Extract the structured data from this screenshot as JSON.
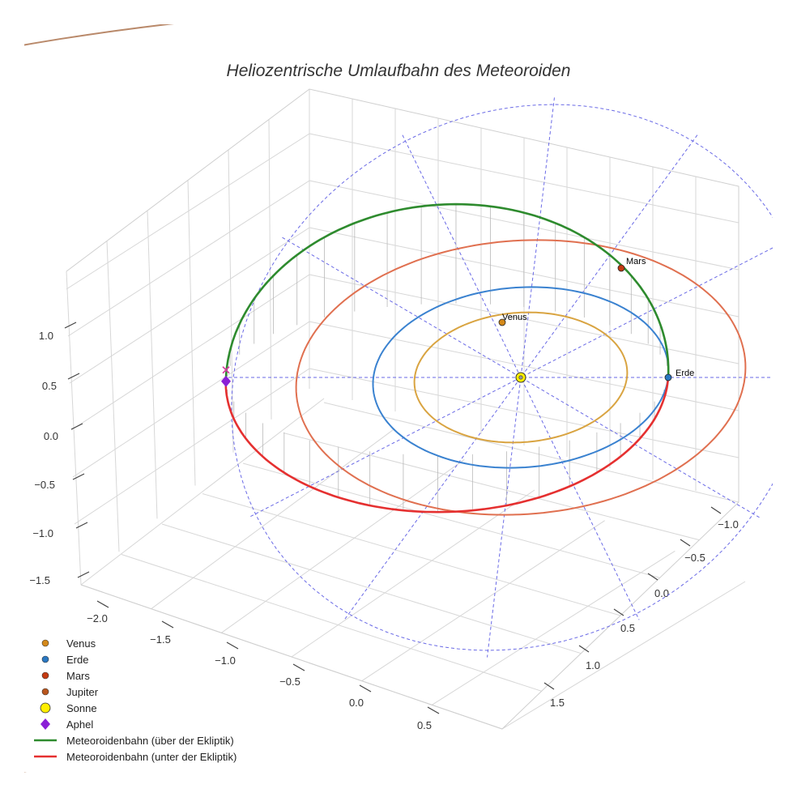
{
  "chart_data": {
    "type": "3d-line",
    "title": "Heliozentrische Umlaufbahn des Meteoroiden",
    "x_axis": {
      "ticks": [
        "−2.0",
        "−1.5",
        "−1.0",
        "−0.5",
        "0.0",
        "0.5"
      ],
      "range": [
        -2.3,
        0.8
      ]
    },
    "y_axis": {
      "ticks": [
        "−1.0",
        "−0.5",
        "0.0",
        "0.5",
        "1.0",
        "1.5"
      ],
      "range": [
        -1.3,
        1.8
      ]
    },
    "z_axis": {
      "ticks": [
        "−1.5",
        "−1.0",
        "−0.5",
        "0.0",
        "0.5",
        "1.0"
      ],
      "range": [
        -1.7,
        1.4
      ]
    },
    "orbits": [
      {
        "name": "Venus",
        "radius_au": 0.72,
        "color": "#d9a441"
      },
      {
        "name": "Erde",
        "radius_au": 1.0,
        "color": "#3a82d0"
      },
      {
        "name": "Mars",
        "radius_au": 1.52,
        "color": "#e07050"
      },
      {
        "name": "Jupiter",
        "radius_au": 5.2,
        "color": "#b9896a"
      }
    ],
    "planets": [
      {
        "name": "Venus",
        "label": "Venus",
        "color": "#d4891a",
        "x": 0.0,
        "y": 0.72,
        "z": 0.0
      },
      {
        "name": "Erde",
        "label": "Erde",
        "color": "#2a78c2",
        "x": 1.0,
        "y": 0.0,
        "z": 0.0
      },
      {
        "name": "Mars",
        "label": "Mars",
        "color": "#c43a12",
        "x": 0.9,
        "y": 1.22,
        "z": 0.0
      }
    ],
    "sun": {
      "name": "Sonne",
      "color": "#ffee00",
      "x": 0,
      "y": 0,
      "z": 0
    },
    "meteoroid": {
      "semi_major_axis_au": 1.5,
      "eccentricity": 0.333,
      "perihelion_x": 1.0,
      "aphelion_x": -2.0,
      "inclination_deg": 35,
      "aphelion": {
        "x": -2.0,
        "y": 0.0,
        "z": -0.05
      },
      "above_color": "#2e8b2e",
      "below_color": "#e53030"
    },
    "legend": [
      {
        "label": "Venus",
        "marker": "dot",
        "color": "#d4891a"
      },
      {
        "label": "Erde",
        "marker": "dot",
        "color": "#2a78c2"
      },
      {
        "label": "Mars",
        "marker": "dot",
        "color": "#c43a12"
      },
      {
        "label": "Jupiter",
        "marker": "dot",
        "color": "#b9561e"
      },
      {
        "label": "Sonne",
        "marker": "sun",
        "color": "#ffee00"
      },
      {
        "label": "Aphel",
        "marker": "diamond",
        "color": "#8a1fd6"
      },
      {
        "label": "Meteoroidenbahn (über der Ekliptik)",
        "marker": "line",
        "color": "#2e8b2e"
      },
      {
        "label": "Meteoroidenbahn (unter der Ekliptik)",
        "marker": "line",
        "color": "#e53030"
      }
    ]
  }
}
